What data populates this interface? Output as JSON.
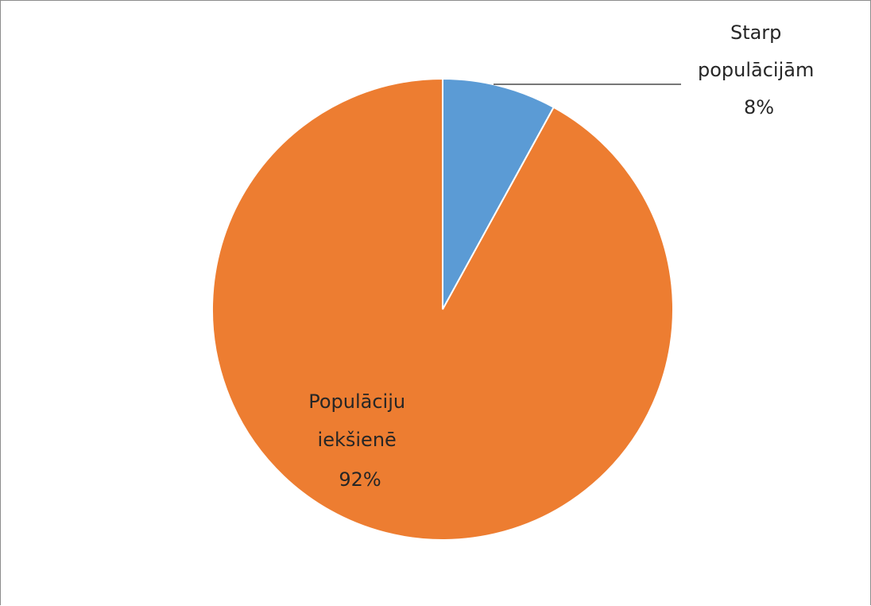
{
  "chart_data": {
    "type": "pie",
    "title": "",
    "slices": [
      {
        "label_lines": [
          "Starp",
          "populācijām"
        ],
        "percent_label": "8%",
        "value": 8,
        "color": "#5b9bd5"
      },
      {
        "label_lines": [
          "Populāciju",
          "iekšienē"
        ],
        "percent_label": "92%",
        "value": 92,
        "color": "#ed7d31"
      }
    ],
    "start_angle_deg": 0,
    "direction": "clockwise",
    "legend": "none",
    "leader_line": true
  }
}
